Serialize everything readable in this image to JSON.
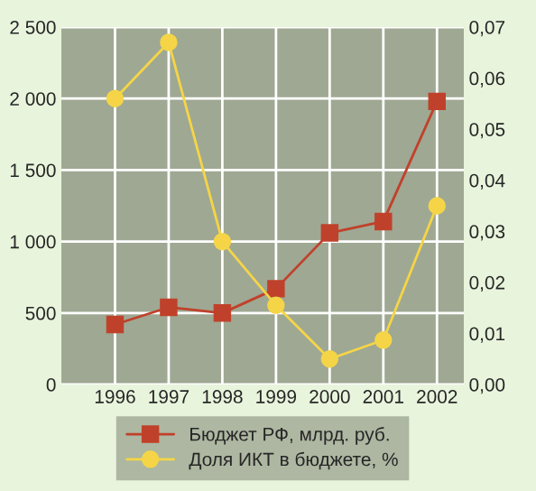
{
  "chart_data": {
    "type": "line",
    "categories": [
      "1996",
      "1997",
      "1998",
      "1999",
      "2000",
      "2001",
      "2002"
    ],
    "series": [
      {
        "name": "Бюджет РФ, млрд. руб.",
        "color": "#c0412b",
        "marker": "square",
        "values": [
          420,
          540,
          500,
          670,
          1060,
          1140,
          1980
        ]
      },
      {
        "name": "Доля ИКТ в бюджете, %",
        "color": "#f5d547",
        "marker": "circle",
        "axis": "y2",
        "values": [
          0.056,
          0.067,
          0.028,
          0.0155,
          0.005,
          0.0087,
          0.035
        ]
      }
    ],
    "ylim": [
      0,
      2500
    ],
    "yticks": [
      0,
      500,
      {
        "value": 1000,
        "label": "1 000"
      },
      {
        "value": 1500,
        "label": "1 500"
      },
      {
        "value": 2000,
        "label": "2 000"
      },
      {
        "value": 2500,
        "label": "2 500"
      }
    ],
    "y2lim": [
      0,
      0.07
    ],
    "y2ticks": [
      {
        "value": 0,
        "label": "0,00"
      },
      {
        "value": 0.01,
        "label": "0,01"
      },
      {
        "value": 0.02,
        "label": "0,02"
      },
      {
        "value": 0.03,
        "label": "0,03"
      },
      {
        "value": 0.04,
        "label": "0,04"
      },
      {
        "value": 0.05,
        "label": "0,05"
      },
      {
        "value": 0.06,
        "label": "0,06"
      },
      {
        "value": 0.07,
        "label": "0,07"
      }
    ],
    "grid": true,
    "legend": "bottom"
  }
}
